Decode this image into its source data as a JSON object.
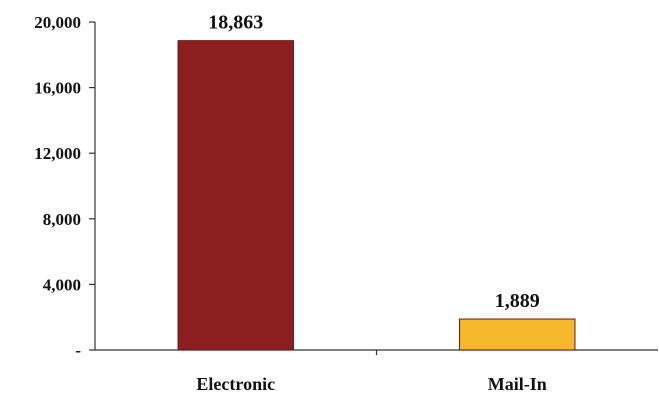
{
  "chart_data": {
    "type": "bar",
    "title": "",
    "xlabel": "",
    "ylabel": "",
    "categories": [
      "Electronic",
      "Mail-In"
    ],
    "values": [
      18863,
      1889
    ],
    "data_labels": [
      "18,863",
      "1,889"
    ],
    "ylim": [
      0,
      20000
    ],
    "yticks": [
      0,
      4000,
      8000,
      12000,
      16000,
      20000
    ],
    "ytick_labels": [
      "-",
      "4,000",
      "8,000",
      "12,000",
      "16,000",
      "20,000"
    ],
    "grid": false,
    "legend": "none",
    "colors": [
      "#8b1e1e",
      "#f6b92c"
    ],
    "bar_stroke": "#6b1515",
    "axis_color": "#333333"
  }
}
